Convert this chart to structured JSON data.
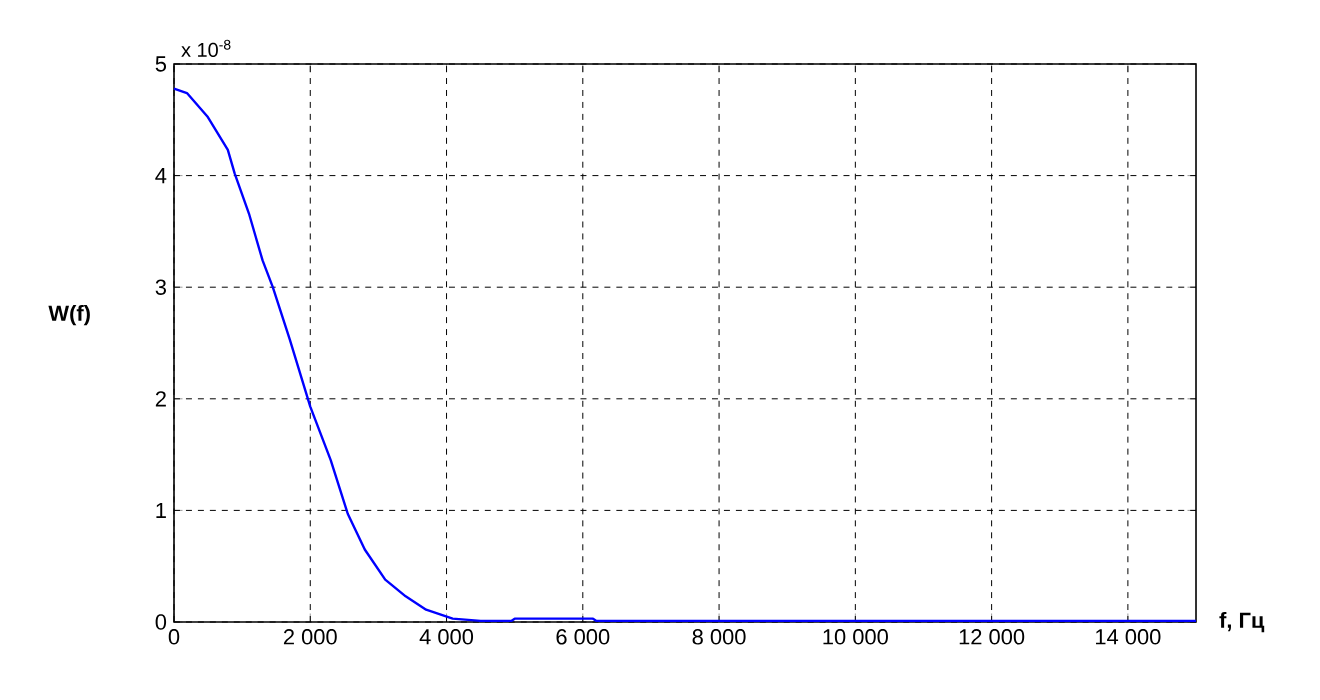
{
  "chart_data": {
    "type": "line",
    "xlabel": "f, Гц",
    "ylabel": "W(f)",
    "annotations": [
      "x 10$^{-8}$"
    ],
    "x": [
      0,
      190,
      490,
      790,
      890,
      1100,
      1300,
      1450,
      1700,
      2000,
      2300,
      2550,
      2800,
      3100,
      3400,
      3700,
      4090,
      4500,
      4950,
      5000,
      6150,
      6200,
      8000,
      10000,
      12000,
      15000
    ],
    "series": [
      {
        "color": "#0000ff",
        "values": [
          4.78,
          4.74,
          4.53,
          4.23,
          4.02,
          3.66,
          3.24,
          3.0,
          2.53,
          1.93,
          1.45,
          0.97,
          0.65,
          0.38,
          0.23,
          0.11,
          0.03,
          0.01,
          0.01,
          0.03,
          0.03,
          0.01,
          0.01,
          0.01,
          0.01,
          0.01
        ]
      }
    ],
    "xlim": [
      0,
      15000
    ],
    "ylim": [
      0,
      5
    ],
    "xticks": [
      0,
      {
        "value": 2000,
        "label": "2 000"
      },
      {
        "value": 4000,
        "label": "4 000"
      },
      {
        "value": 6000,
        "label": "6 000"
      },
      {
        "value": 8000,
        "label": "8 000"
      },
      {
        "value": 10000,
        "label": "10 000"
      },
      {
        "value": 12000,
        "label": "12 000"
      },
      {
        "value": 14000,
        "label": "14 000"
      }
    ],
    "yticks": [
      0,
      1,
      2,
      3,
      4,
      5
    ],
    "grid": true,
    "marker": "none",
    "line_style": "solid"
  }
}
